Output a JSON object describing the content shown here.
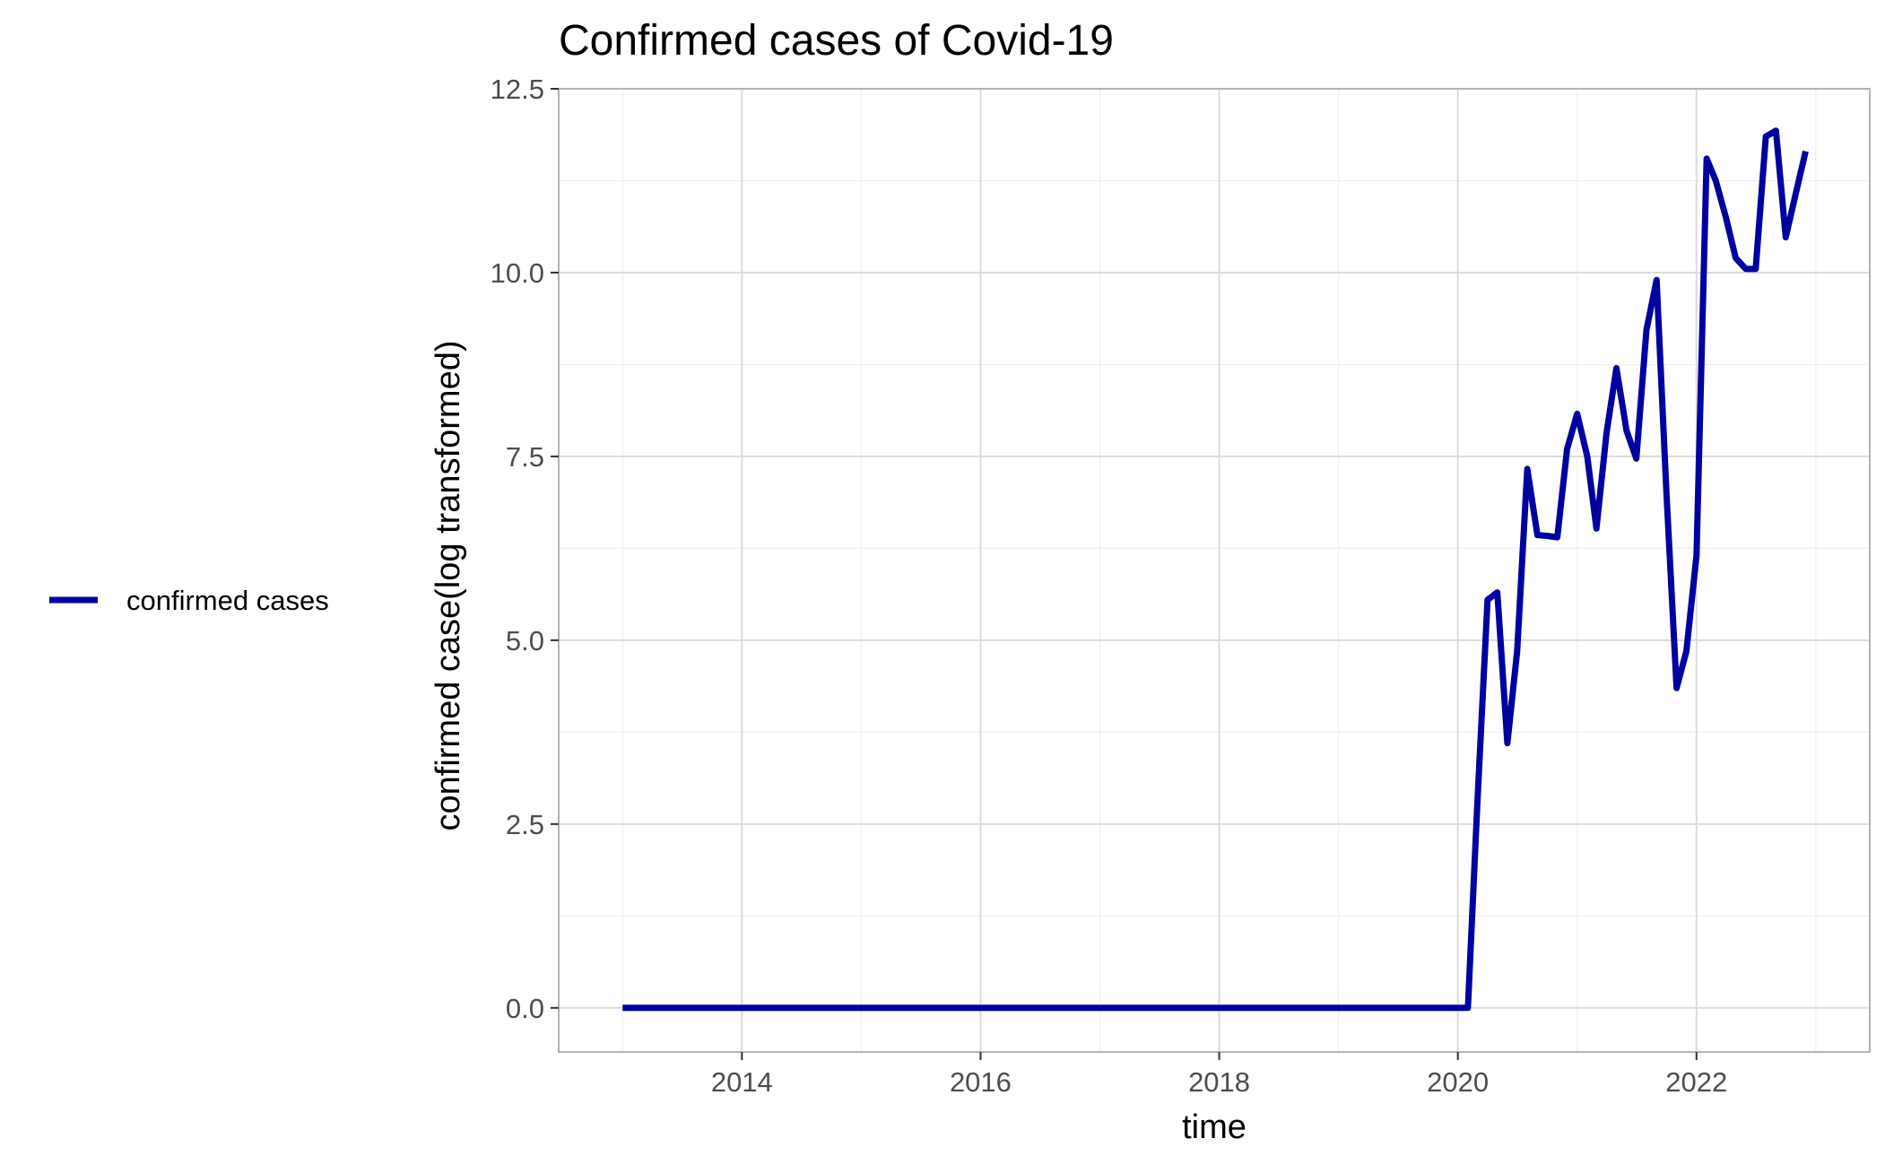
{
  "chart_data": {
    "type": "line",
    "title": "Confirmed cases of Covid-19",
    "xlabel": "time",
    "ylabel": "confirmed case(log transformed)",
    "xlim": [
      "2012-06-19",
      "2023-06-15"
    ],
    "ylim": [
      -0.6,
      12.5
    ],
    "x_ticks": [
      "2014",
      "2016",
      "2018",
      "2020",
      "2022"
    ],
    "y_ticks": [
      "0.0",
      "2.5",
      "5.0",
      "7.5",
      "10.0",
      "12.5"
    ],
    "grid": true,
    "legend_position": "left",
    "series": [
      {
        "name": "confirmed cases",
        "color": "#0000A0",
        "x": [
          "2013-01",
          "2013-02",
          "2013-03",
          "2013-04",
          "2013-05",
          "2013-06",
          "2013-07",
          "2013-08",
          "2013-09",
          "2013-10",
          "2013-11",
          "2013-12",
          "2014-01",
          "2014-02",
          "2014-03",
          "2014-04",
          "2014-05",
          "2014-06",
          "2014-07",
          "2014-08",
          "2014-09",
          "2014-10",
          "2014-11",
          "2014-12",
          "2015-01",
          "2015-02",
          "2015-03",
          "2015-04",
          "2015-05",
          "2015-06",
          "2015-07",
          "2015-08",
          "2015-09",
          "2015-10",
          "2015-11",
          "2015-12",
          "2016-01",
          "2016-02",
          "2016-03",
          "2016-04",
          "2016-05",
          "2016-06",
          "2016-07",
          "2016-08",
          "2016-09",
          "2016-10",
          "2016-11",
          "2016-12",
          "2017-01",
          "2017-02",
          "2017-03",
          "2017-04",
          "2017-05",
          "2017-06",
          "2017-07",
          "2017-08",
          "2017-09",
          "2017-10",
          "2017-11",
          "2017-12",
          "2018-01",
          "2018-02",
          "2018-03",
          "2018-04",
          "2018-05",
          "2018-06",
          "2018-07",
          "2018-08",
          "2018-09",
          "2018-10",
          "2018-11",
          "2018-12",
          "2019-01",
          "2019-02",
          "2019-03",
          "2019-04",
          "2019-05",
          "2019-06",
          "2019-07",
          "2019-08",
          "2019-09",
          "2019-10",
          "2019-11",
          "2019-12",
          "2020-01",
          "2020-02",
          "2020-03",
          "2020-04",
          "2020-05",
          "2020-06",
          "2020-07",
          "2020-08",
          "2020-09",
          "2020-10",
          "2020-11",
          "2020-12",
          "2021-01",
          "2021-02",
          "2021-03",
          "2021-04",
          "2021-05",
          "2021-06",
          "2021-07",
          "2021-08",
          "2021-09",
          "2021-10",
          "2021-11",
          "2021-12",
          "2022-01",
          "2022-02",
          "2022-03",
          "2022-04",
          "2022-05",
          "2022-06",
          "2022-07",
          "2022-08",
          "2022-09",
          "2022-10",
          "2022-11",
          "2022-12"
        ],
        "y": [
          0,
          0,
          0,
          0,
          0,
          0,
          0,
          0,
          0,
          0,
          0,
          0,
          0,
          0,
          0,
          0,
          0,
          0,
          0,
          0,
          0,
          0,
          0,
          0,
          0,
          0,
          0,
          0,
          0,
          0,
          0,
          0,
          0,
          0,
          0,
          0,
          0,
          0,
          0,
          0,
          0,
          0,
          0,
          0,
          0,
          0,
          0,
          0,
          0,
          0,
          0,
          0,
          0,
          0,
          0,
          0,
          0,
          0,
          0,
          0,
          0,
          0,
          0,
          0,
          0,
          0,
          0,
          0,
          0,
          0,
          0,
          0,
          0,
          0,
          0,
          0,
          0,
          0,
          0,
          0,
          0,
          0,
          0,
          0,
          0,
          0,
          2.8,
          5.55,
          5.65,
          3.6,
          4.85,
          7.33,
          6.43,
          6.42,
          6.4,
          7.6,
          8.08,
          7.5,
          6.52,
          7.82,
          8.7,
          7.85,
          7.47,
          9.22,
          9.9,
          7.0,
          4.35,
          4.85,
          6.15,
          11.55,
          11.25,
          10.75,
          10.2,
          10.05,
          10.05,
          11.85,
          11.93,
          10.48,
          11.08,
          11.65
        ]
      }
    ]
  }
}
